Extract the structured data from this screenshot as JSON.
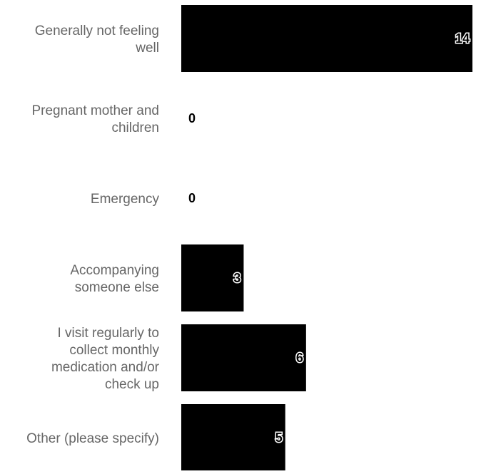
{
  "chart_data": {
    "type": "bar",
    "orientation": "horizontal",
    "categories": [
      [
        "Generally not feeling",
        "well"
      ],
      [
        "Pregnant mother and",
        "children"
      ],
      [
        "Emergency"
      ],
      [
        "Accompanying",
        "someone else"
      ],
      [
        "I visit regularly to",
        "collect monthly",
        "medication and/or",
        "check up"
      ],
      [
        "Other (please specify)"
      ]
    ],
    "values": [
      14,
      0,
      0,
      3,
      6,
      5
    ],
    "title": "",
    "xlabel": "",
    "ylabel": "",
    "xlim": [
      0,
      14
    ],
    "grid": false,
    "legend": "none",
    "colors": {
      "bar": "#000000",
      "category_text": "#666666",
      "value_text": "#000000"
    }
  }
}
